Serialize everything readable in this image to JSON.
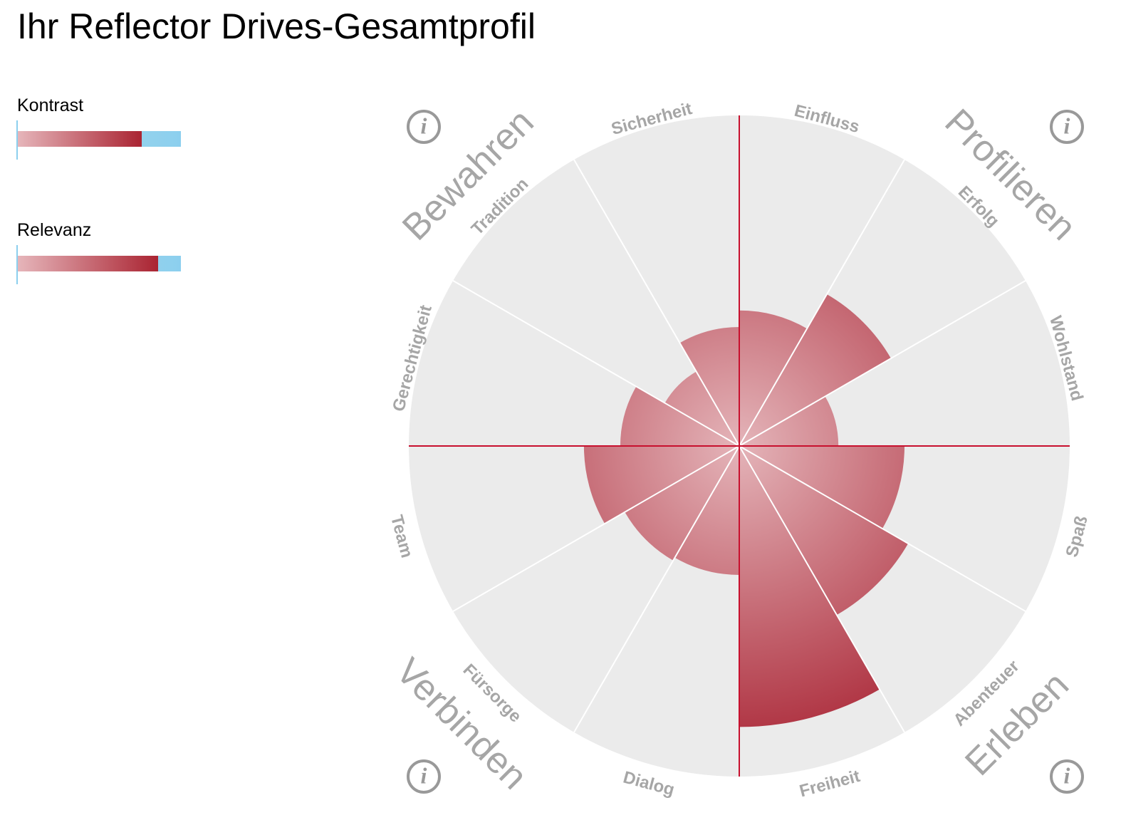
{
  "title": "Ihr Reflector Drives-Gesamtprofil",
  "legend": [
    {
      "label": "Kontrast",
      "value": 0.76
    },
    {
      "label": "Relevanz",
      "value": 0.86
    }
  ],
  "colors": {
    "inner": "#e4b4b9",
    "outer": "#a82232",
    "background": "#ebebeb",
    "axis": "#c8102e",
    "label": "#a6a6a6"
  },
  "chart_data": {
    "type": "polar-area",
    "title": "Ihr Reflector Drives-Gesamtprofil",
    "rlim": [
      0,
      100
    ],
    "categories": [
      "Einfluss",
      "Erfolg",
      "Wohlstand",
      "Spaß",
      "Abenteuer",
      "Freiheit",
      "Dialog",
      "Fürsorge",
      "Team",
      "Gerechtigkeit",
      "Tradition",
      "Sicherheit"
    ],
    "values": [
      41,
      53,
      30,
      50,
      59,
      85,
      39,
      40,
      47,
      36,
      26,
      36
    ],
    "quadrants": [
      "Profilieren",
      "Erleben",
      "Verbinden",
      "Bewahren"
    ],
    "info_icon": "info-icon"
  }
}
